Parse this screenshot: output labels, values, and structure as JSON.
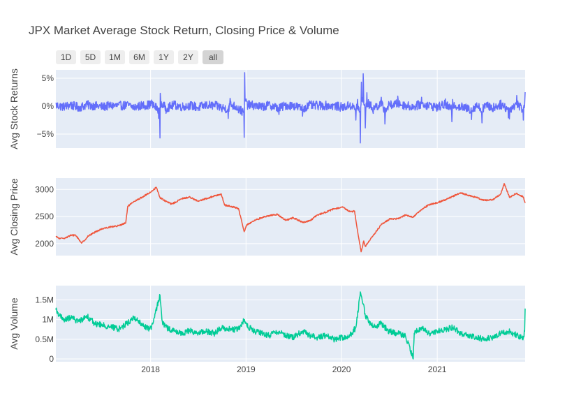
{
  "title": "JPX Market Average Stock Return, Closing Price & Volume",
  "range_buttons": [
    {
      "label": "1D",
      "active": false
    },
    {
      "label": "5D",
      "active": false
    },
    {
      "label": "1M",
      "active": false
    },
    {
      "label": "6M",
      "active": false
    },
    {
      "label": "1Y",
      "active": false
    },
    {
      "label": "2Y",
      "active": false
    },
    {
      "label": "all",
      "active": true
    }
  ],
  "colors": {
    "returns": "#636efa",
    "close": "#ef553b",
    "volume": "#00cc96",
    "plot_bg": "#e5ecf6",
    "grid": "#ffffff"
  },
  "chart_data": [
    {
      "type": "line",
      "ylabel": "Avg Stock Returns",
      "xlim": [
        "2017-01-04",
        "2021-12-03"
      ],
      "ylim": [
        -7.5,
        6.5
      ],
      "yticks": [
        {
          "value": 5,
          "label": "5%"
        },
        {
          "value": 0,
          "label": "0%"
        },
        {
          "value": -5,
          "label": "−5%"
        }
      ],
      "series": [
        {
          "points": [
            [
              "2017-01-04",
              0.6
            ],
            [
              "2017-02-01",
              -0.4
            ],
            [
              "2017-03-01",
              0.7
            ],
            [
              "2017-04-03",
              -0.9
            ],
            [
              "2017-05-01",
              0.8
            ],
            [
              "2017-06-01",
              0.3
            ],
            [
              "2017-07-03",
              -0.5
            ],
            [
              "2017-08-01",
              0.4
            ],
            [
              "2017-09-01",
              0.2
            ],
            [
              "2017-10-02",
              0.6
            ],
            [
              "2017-11-01",
              -0.7
            ],
            [
              "2017-12-01",
              0.5
            ],
            [
              "2018-01-04",
              1.1
            ],
            [
              "2018-02-01",
              -2.2
            ],
            [
              "2018-02-06",
              -5.7
            ],
            [
              "2018-02-07",
              2.3
            ],
            [
              "2018-03-01",
              -1.3
            ],
            [
              "2018-04-02",
              0.8
            ],
            [
              "2018-05-01",
              -0.4
            ],
            [
              "2018-06-01",
              0.5
            ],
            [
              "2018-07-02",
              -0.8
            ],
            [
              "2018-08-01",
              0.6
            ],
            [
              "2018-09-03",
              0.4
            ],
            [
              "2018-10-01",
              -1.0
            ],
            [
              "2018-10-25",
              -2.2
            ],
            [
              "2018-11-01",
              1.4
            ],
            [
              "2018-12-03",
              -1.2
            ],
            [
              "2018-12-25",
              -5.6
            ],
            [
              "2018-12-26",
              0.8
            ],
            [
              "2018-12-27",
              6.0
            ],
            [
              "2019-01-04",
              0.9
            ],
            [
              "2019-02-01",
              0.5
            ],
            [
              "2019-03-01",
              -0.6
            ],
            [
              "2019-04-01",
              0.7
            ],
            [
              "2019-05-07",
              -1.5
            ],
            [
              "2019-06-03",
              0.6
            ],
            [
              "2019-07-01",
              0.4
            ],
            [
              "2019-08-05",
              -1.8
            ],
            [
              "2019-09-02",
              0.7
            ],
            [
              "2019-10-01",
              0.3
            ],
            [
              "2019-11-01",
              0.5
            ],
            [
              "2019-12-02",
              0.2
            ],
            [
              "2020-01-06",
              -0.8
            ],
            [
              "2020-02-03",
              0.6
            ],
            [
              "2020-02-25",
              -2.5
            ],
            [
              "2020-03-02",
              1.2
            ],
            [
              "2020-03-13",
              -6.6
            ],
            [
              "2020-03-17",
              4.3
            ],
            [
              "2020-03-24",
              5.8
            ],
            [
              "2020-03-25",
              3.9
            ],
            [
              "2020-04-01",
              -3.9
            ],
            [
              "2020-04-07",
              2.4
            ],
            [
              "2020-05-01",
              -1.3
            ],
            [
              "2020-06-01",
              1.6
            ],
            [
              "2020-06-15",
              -3.2
            ],
            [
              "2020-07-01",
              0.6
            ],
            [
              "2020-08-03",
              1.8
            ],
            [
              "2020-09-01",
              0.4
            ],
            [
              "2020-10-01",
              -0.5
            ],
            [
              "2020-11-02",
              1.6
            ],
            [
              "2020-12-01",
              0.3
            ],
            [
              "2021-01-04",
              -0.7
            ],
            [
              "2021-02-01",
              1.3
            ],
            [
              "2021-02-26",
              -2.8
            ],
            [
              "2021-03-01",
              1.2
            ],
            [
              "2021-04-01",
              -0.6
            ],
            [
              "2021-05-12",
              -2.4
            ],
            [
              "2021-06-01",
              0.6
            ],
            [
              "2021-06-21",
              -3.0
            ],
            [
              "2021-07-01",
              0.5
            ],
            [
              "2021-08-02",
              -1.0
            ],
            [
              "2021-09-01",
              1.1
            ],
            [
              "2021-09-30",
              -2.1
            ],
            [
              "2021-10-04",
              -2.3
            ],
            [
              "2021-11-01",
              1.9
            ],
            [
              "2021-11-26",
              -2.5
            ],
            [
              "2021-12-01",
              0.3
            ],
            [
              "2021-12-03",
              2.5
            ]
          ]
        }
      ]
    },
    {
      "type": "line",
      "ylabel": "Avg Closing Price",
      "xlim": [
        "2017-01-04",
        "2021-12-03"
      ],
      "ylim": [
        1780,
        3210
      ],
      "yticks": [
        {
          "value": 3000,
          "label": "3000"
        },
        {
          "value": 2500,
          "label": "2500"
        },
        {
          "value": 2000,
          "label": "2000"
        }
      ],
      "series": [
        {
          "points": [
            [
              "2017-01-04",
              2130
            ],
            [
              "2017-01-20",
              2090
            ],
            [
              "2017-02-10",
              2110
            ],
            [
              "2017-03-01",
              2150
            ],
            [
              "2017-03-20",
              2160
            ],
            [
              "2017-04-13",
              2010
            ],
            [
              "2017-05-08",
              2140
            ],
            [
              "2017-06-05",
              2220
            ],
            [
              "2017-07-03",
              2280
            ],
            [
              "2017-08-01",
              2310
            ],
            [
              "2017-09-01",
              2330
            ],
            [
              "2017-09-28",
              2380
            ],
            [
              "2017-10-06",
              2690
            ],
            [
              "2017-11-01",
              2780
            ],
            [
              "2017-12-01",
              2860
            ],
            [
              "2018-01-04",
              2960
            ],
            [
              "2018-01-23",
              3040
            ],
            [
              "2018-02-06",
              2850
            ],
            [
              "2018-03-01",
              2780
            ],
            [
              "2018-03-23",
              2730
            ],
            [
              "2018-05-01",
              2830
            ],
            [
              "2018-06-01",
              2860
            ],
            [
              "2018-07-02",
              2780
            ],
            [
              "2018-08-01",
              2830
            ],
            [
              "2018-09-28",
              2920
            ],
            [
              "2018-10-11",
              2710
            ],
            [
              "2018-11-01",
              2690
            ],
            [
              "2018-12-03",
              2650
            ],
            [
              "2018-12-25",
              2220
            ],
            [
              "2019-01-04",
              2350
            ],
            [
              "2019-02-01",
              2420
            ],
            [
              "2019-03-01",
              2480
            ],
            [
              "2019-04-01",
              2520
            ],
            [
              "2019-05-01",
              2540
            ],
            [
              "2019-06-03",
              2430
            ],
            [
              "2019-07-01",
              2480
            ],
            [
              "2019-08-06",
              2390
            ],
            [
              "2019-09-02",
              2420
            ],
            [
              "2019-10-01",
              2530
            ],
            [
              "2019-11-01",
              2580
            ],
            [
              "2019-12-02",
              2640
            ],
            [
              "2020-01-06",
              2670
            ],
            [
              "2020-02-03",
              2590
            ],
            [
              "2020-02-20",
              2600
            ],
            [
              "2020-03-02",
              2250
            ],
            [
              "2020-03-16",
              1850
            ],
            [
              "2020-03-26",
              2050
            ],
            [
              "2020-04-01",
              1950
            ],
            [
              "2020-05-01",
              2150
            ],
            [
              "2020-06-01",
              2350
            ],
            [
              "2020-07-01",
              2450
            ],
            [
              "2020-08-03",
              2460
            ],
            [
              "2020-09-01",
              2530
            ],
            [
              "2020-10-01",
              2490
            ],
            [
              "2020-11-02",
              2630
            ],
            [
              "2020-12-01",
              2720
            ],
            [
              "2021-01-04",
              2760
            ],
            [
              "2021-02-01",
              2810
            ],
            [
              "2021-03-01",
              2870
            ],
            [
              "2021-04-01",
              2940
            ],
            [
              "2021-05-06",
              2880
            ],
            [
              "2021-06-01",
              2850
            ],
            [
              "2021-07-01",
              2800
            ],
            [
              "2021-08-02",
              2810
            ],
            [
              "2021-09-01",
              2920
            ],
            [
              "2021-09-14",
              3110
            ],
            [
              "2021-10-05",
              2850
            ],
            [
              "2021-11-01",
              2930
            ],
            [
              "2021-11-26",
              2860
            ],
            [
              "2021-12-03",
              2750
            ]
          ]
        }
      ]
    },
    {
      "type": "line",
      "ylabel": "Avg Volume",
      "xlim": [
        "2017-01-04",
        "2021-12-03"
      ],
      "ylim": [
        -70000,
        1860000
      ],
      "yticks": [
        {
          "value": 1500000,
          "label": "1.5M"
        },
        {
          "value": 1000000,
          "label": "1M"
        },
        {
          "value": 500000,
          "label": "0.5M"
        },
        {
          "value": 0,
          "label": "0"
        }
      ],
      "xticks": [
        {
          "value": "2018-01-01",
          "label": "2018"
        },
        {
          "value": "2019-01-01",
          "label": "2019"
        },
        {
          "value": "2020-01-01",
          "label": "2020"
        },
        {
          "value": "2021-01-01",
          "label": "2021"
        }
      ],
      "series": [
        {
          "points": [
            [
              "2017-01-04",
              1250000
            ],
            [
              "2017-02-01",
              980000
            ],
            [
              "2017-03-01",
              1050000
            ],
            [
              "2017-04-03",
              950000
            ],
            [
              "2017-05-01",
              1100000
            ],
            [
              "2017-06-01",
              900000
            ],
            [
              "2017-07-03",
              850000
            ],
            [
              "2017-08-01",
              820000
            ],
            [
              "2017-09-01",
              760000
            ],
            [
              "2017-10-02",
              900000
            ],
            [
              "2017-11-01",
              1050000
            ],
            [
              "2017-12-01",
              850000
            ],
            [
              "2018-01-04",
              750000
            ],
            [
              "2018-02-06",
              1620000
            ],
            [
              "2018-02-15",
              950000
            ],
            [
              "2018-03-01",
              800000
            ],
            [
              "2018-04-02",
              700000
            ],
            [
              "2018-05-01",
              650000
            ],
            [
              "2018-06-01",
              720000
            ],
            [
              "2018-07-02",
              650000
            ],
            [
              "2018-08-01",
              700000
            ],
            [
              "2018-09-03",
              650000
            ],
            [
              "2018-10-01",
              800000
            ],
            [
              "2018-11-01",
              750000
            ],
            [
              "2018-12-03",
              750000
            ],
            [
              "2018-12-26",
              1000000
            ],
            [
              "2019-01-04",
              850000
            ],
            [
              "2019-02-01",
              700000
            ],
            [
              "2019-03-01",
              650000
            ],
            [
              "2019-04-01",
              600000
            ],
            [
              "2019-05-07",
              700000
            ],
            [
              "2019-06-03",
              600000
            ],
            [
              "2019-07-01",
              550000
            ],
            [
              "2019-08-05",
              700000
            ],
            [
              "2019-09-02",
              600000
            ],
            [
              "2019-10-01",
              550000
            ],
            [
              "2019-11-01",
              600000
            ],
            [
              "2019-12-02",
              500000
            ],
            [
              "2020-01-06",
              550000
            ],
            [
              "2020-02-03",
              600000
            ],
            [
              "2020-02-25",
              800000
            ],
            [
              "2020-03-13",
              1700000
            ],
            [
              "2020-03-24",
              1400000
            ],
            [
              "2020-04-01",
              1100000
            ],
            [
              "2020-05-01",
              800000
            ],
            [
              "2020-06-01",
              900000
            ],
            [
              "2020-07-01",
              700000
            ],
            [
              "2020-08-03",
              650000
            ],
            [
              "2020-09-01",
              600000
            ],
            [
              "2020-10-01",
              0
            ],
            [
              "2020-10-05",
              650000
            ],
            [
              "2020-11-02",
              800000
            ],
            [
              "2020-12-01",
              650000
            ],
            [
              "2021-01-04",
              700000
            ],
            [
              "2021-02-01",
              750000
            ],
            [
              "2021-03-01",
              800000
            ],
            [
              "2021-04-01",
              650000
            ],
            [
              "2021-05-06",
              600000
            ],
            [
              "2021-06-01",
              550000
            ],
            [
              "2021-07-01",
              500000
            ],
            [
              "2021-08-02",
              550000
            ],
            [
              "2021-09-01",
              650000
            ],
            [
              "2021-10-01",
              700000
            ],
            [
              "2021-11-01",
              600000
            ],
            [
              "2021-11-26",
              550000
            ],
            [
              "2021-12-01",
              700000
            ],
            [
              "2021-12-03",
              1280000
            ]
          ]
        }
      ]
    }
  ]
}
